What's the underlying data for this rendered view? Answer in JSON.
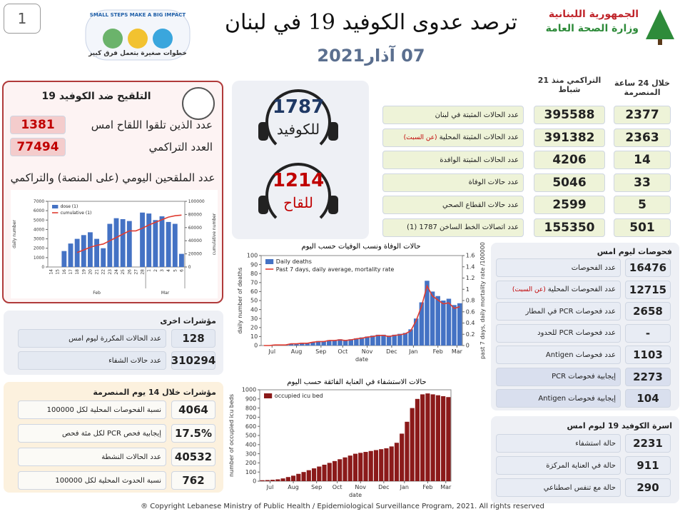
{
  "header": {
    "page_number": "1",
    "title": "ترصد عدوى الكوفيد 19 في لبنان",
    "date": "07 آذار2021",
    "ministry": [
      "الجمهورية اللبنانية",
      "وزارة الصحة العامة"
    ],
    "campaign": {
      "slogan": "SMALL STEPS MAKE A BIG IMPACT",
      "arabic": "خطوات صغيرة بتعمل فرق كبير"
    }
  },
  "summary": {
    "col_24h": "خلال 24 ساعة المنصرمة",
    "col_cumulative": "التراكمي منذ 21 شباط",
    "rows": [
      {
        "label": "عدد الحالات المثبتة في لبنان",
        "cumulative": 395588,
        "last_24h": 2377
      },
      {
        "label": "عدد الحالات المثبتة المحلية",
        "note": "(عن السبت)",
        "cumulative": 391382,
        "last_24h": 2363
      },
      {
        "label": "عدد الحالات المثبتة الوافدة",
        "cumulative": 4206,
        "last_24h": 14
      },
      {
        "label": "عدد حالات الوفاة",
        "cumulative": 5046,
        "last_24h": 33
      },
      {
        "label": "عدد حالات القطاع الصحي",
        "cumulative": 2599,
        "last_24h": 5
      },
      {
        "label": "عدد اتصالات الخط الساخن 1787 (1)",
        "cumulative": 155350,
        "last_24h": 501
      }
    ]
  },
  "hotlines": [
    {
      "number": 1787,
      "label": "للكوفيد"
    },
    {
      "number": 1214,
      "label": "للقاح"
    }
  ],
  "vaccination": {
    "title": "التلقيح ضد الكوفيد 19",
    "rows": [
      {
        "label": "عدد الذين تلقوا اللقاح امس",
        "value": 1381
      },
      {
        "label": "العدد التراكمي",
        "value": 77494
      }
    ],
    "chart_title": "عدد الملقحين اليومي (على المنصة) والتراكمي"
  },
  "other_indicators": {
    "title": "مؤشرات اخرى",
    "rows": [
      {
        "label": "عدد الحالات المكررة ليوم امس",
        "value": 128
      },
      {
        "label": "عدد حالات الشفاء",
        "value": 310294
      }
    ]
  },
  "indicators_14d": {
    "title": "مؤشرات خلال 14 يوم المنصرمة",
    "rows": [
      {
        "label": "نسبة الفحوصات المحلية لكل 100000",
        "value": 4064
      },
      {
        "label": "إيجابية فحص PCR لكل مئة فحص",
        "value": "17.5%"
      },
      {
        "label": "عدد الحالات النشطة",
        "value": 40532
      },
      {
        "label": "نسبة الحدوث المحلية لكل 100000",
        "value": 762
      }
    ]
  },
  "tests": {
    "title": "فحوصات ليوم امس",
    "rows": [
      {
        "label": "عدد الفحوصات",
        "value": 16476
      },
      {
        "label": "عدد الفحوصات المحلية",
        "note": "(عن السبت)",
        "value": 12715
      },
      {
        "label": "عدد فحوصات PCR في المطار",
        "value": 2658
      },
      {
        "label": "عدد فحوصات PCR للحدود",
        "value": "-"
      },
      {
        "label": "عدد فحوصات Antigen",
        "value": 1103
      },
      {
        "label": "إيجابية فحوصات PCR",
        "value": 2273
      },
      {
        "label": "إيجابية فحوصات Antigen",
        "value": 104
      }
    ]
  },
  "covid_family": {
    "title": "اسرة الكوفيد 19 ليوم امس",
    "rows": [
      {
        "label": "حالة استشفاء",
        "value": 2231
      },
      {
        "label": "حالة في العناية المركزة",
        "value": 911
      },
      {
        "label": "حالة مع تنفس اصطناعي",
        "value": 290
      }
    ]
  },
  "footer": "® Copyright Lebanese Ministry of Public Health / Epidemiological Surveillance Program, 2021. All rights reserved",
  "chart_data": [
    {
      "type": "bar-line",
      "categories": [
        "14",
        "15",
        "16",
        "17",
        "18",
        "19",
        "20",
        "21",
        "22",
        "23",
        "24",
        "25",
        "26",
        "27",
        "28",
        "1",
        "2",
        "3",
        "4",
        "5",
        "6"
      ],
      "series": [
        {
          "name": "dose (1)",
          "mark": "bar",
          "color": "#4472c4",
          "values": [
            0,
            0,
            1700,
            2500,
            3000,
            3400,
            3700,
            3000,
            2000,
            4600,
            5200,
            5100,
            4900,
            0,
            5800,
            5700,
            5000,
            5400,
            4800,
            4600,
            1400
          ]
        },
        {
          "name": "cumulative (1)",
          "mark": "line",
          "axis": "y2",
          "color": "#e03c31",
          "values": [
            null,
            null,
            null,
            null,
            22000,
            26000,
            30000,
            33000,
            35000,
            40000,
            45000,
            50000,
            55000,
            55000,
            59000,
            64000,
            68000,
            72000,
            76000,
            78000,
            79000
          ]
        }
      ],
      "ylim": [
        0,
        7000
      ],
      "yticks": [
        0,
        1000,
        2000,
        3000,
        4000,
        5000,
        6000,
        7000
      ],
      "y2lim": [
        0,
        100000
      ],
      "y2ticks": [
        0,
        20000,
        40000,
        60000,
        80000,
        100000
      ],
      "ylabel": "daily number",
      "y2label": "cumulative number",
      "x_groups": [
        "Feb",
        "Mar"
      ]
    },
    {
      "type": "bar-line",
      "title": "حالات الوفاة ونسب الوفيات حسب اليوم",
      "series": [
        {
          "name": "Daily deaths",
          "mark": "bar",
          "color": "#4472c4",
          "values": [
            0,
            0,
            1,
            1,
            1,
            2,
            2,
            3,
            3,
            4,
            5,
            5,
            6,
            6,
            7,
            6,
            7,
            8,
            9,
            10,
            11,
            12,
            12,
            11,
            12,
            13,
            14,
            18,
            30,
            48,
            72,
            60,
            55,
            50,
            52,
            45,
            47
          ]
        },
        {
          "name": "Past 7 days, daily average, mortality rate",
          "mark": "line",
          "axis": "y2",
          "color": "#e03c31",
          "values": [
            0,
            0,
            0.01,
            0.01,
            0.01,
            0.03,
            0.03,
            0.04,
            0.04,
            0.06,
            0.07,
            0.07,
            0.09,
            0.09,
            0.1,
            0.09,
            0.1,
            0.12,
            0.13,
            0.15,
            0.16,
            0.18,
            0.18,
            0.16,
            0.18,
            0.19,
            0.21,
            0.26,
            0.44,
            0.7,
            1.06,
            0.88,
            0.81,
            0.74,
            0.76,
            0.66,
            0.69
          ]
        }
      ],
      "xlim": [
        0,
        37
      ],
      "xticks": [
        {
          "value": 2,
          "label": "Jul"
        },
        {
          "value": 6.5,
          "label": "Aug"
        },
        {
          "value": 11,
          "label": "Sep"
        },
        {
          "value": 15,
          "label": "Oct"
        },
        {
          "value": 19.5,
          "label": "Nov"
        },
        {
          "value": 24,
          "label": "Dec"
        },
        {
          "value": 28,
          "label": "Jan"
        },
        {
          "value": 32.5,
          "label": "Feb"
        },
        {
          "value": 36,
          "label": "Mar"
        }
      ],
      "ylim": [
        0,
        100
      ],
      "yticks": [
        0,
        10,
        20,
        30,
        40,
        50,
        60,
        70,
        80,
        90,
        100
      ],
      "y2lim": [
        0,
        1.6
      ],
      "y2ticks": [
        0,
        0.2,
        0.4,
        0.6,
        0.8,
        1,
        1.2,
        1.4,
        1.6
      ],
      "ylabel": "daily number of deaths",
      "y2label": "past 7 days, daily mortality rate /100000",
      "xlabel": "date"
    },
    {
      "type": "bar",
      "title": "حالات الاستشفاء في العناية الفائقة حسب اليوم",
      "series": [
        {
          "name": "occupied icu bed",
          "mark": "bar",
          "color": "#8b1a1a",
          "values": [
            10,
            12,
            15,
            20,
            30,
            45,
            60,
            80,
            100,
            120,
            140,
            160,
            180,
            200,
            220,
            240,
            260,
            280,
            300,
            310,
            320,
            330,
            340,
            350,
            360,
            380,
            420,
            520,
            650,
            800,
            900,
            950,
            960,
            950,
            940,
            930,
            920
          ]
        }
      ],
      "xlim": [
        0,
        37
      ],
      "xticks": [
        {
          "value": 2,
          "label": "Jul"
        },
        {
          "value": 6.5,
          "label": "Aug"
        },
        {
          "value": 11,
          "label": "Sep"
        },
        {
          "value": 15,
          "label": "Oct"
        },
        {
          "value": 19.5,
          "label": "Nov"
        },
        {
          "value": 24,
          "label": "Dec"
        },
        {
          "value": 28,
          "label": "Jan"
        },
        {
          "value": 32.5,
          "label": "Feb"
        },
        {
          "value": 36,
          "label": "Mar"
        }
      ],
      "ylim": [
        0,
        1000
      ],
      "yticks": [
        0,
        100,
        200,
        300,
        400,
        500,
        600,
        700,
        800,
        900,
        1000
      ],
      "ylabel": "number of occupied icu beds",
      "xlabel": "date"
    }
  ]
}
